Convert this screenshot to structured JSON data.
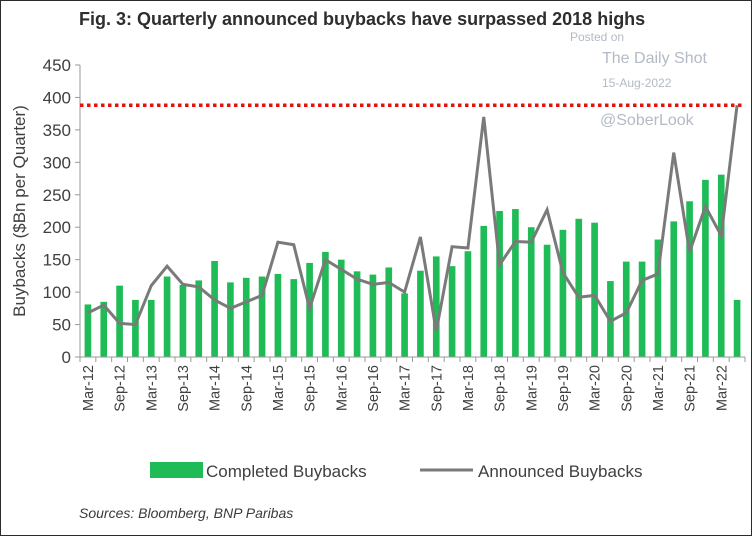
{
  "figure": {
    "title": "Fig. 3: Quarterly announced buybacks have surpassed 2018 highs",
    "source": "Sources: Bloomberg, BNP Paribas"
  },
  "watermark": {
    "posted": "Posted on",
    "site": "The Daily Shot",
    "date": "15-Aug-2022",
    "handle": "@SoberLook"
  },
  "colors": {
    "bar": "#1fbb56",
    "line": "#7a7a7a",
    "reference": "#e3140e",
    "axis": "#999999"
  },
  "chart_data": {
    "type": "bar",
    "title": "Fig. 3: Quarterly announced buybacks have surpassed 2018 highs",
    "ylabel": "Buybacks ($Bn per Quarter)",
    "xlabel": "",
    "ylim": [
      0,
      450
    ],
    "yticks": [
      0,
      50,
      100,
      150,
      200,
      250,
      300,
      350,
      400,
      450
    ],
    "grid": false,
    "legend_position": "bottom",
    "reference_line": {
      "value": 388,
      "style": "dotted"
    },
    "categories": [
      "Mar-12",
      "Jun-12",
      "Sep-12",
      "Dec-12",
      "Mar-13",
      "Jun-13",
      "Sep-13",
      "Dec-13",
      "Mar-14",
      "Jun-14",
      "Sep-14",
      "Dec-14",
      "Mar-15",
      "Jun-15",
      "Sep-15",
      "Dec-15",
      "Mar-16",
      "Jun-16",
      "Sep-16",
      "Dec-16",
      "Mar-17",
      "Jun-17",
      "Sep-17",
      "Dec-17",
      "Mar-18",
      "Jun-18",
      "Sep-18",
      "Dec-18",
      "Mar-19",
      "Jun-19",
      "Sep-19",
      "Dec-19",
      "Mar-20",
      "Jun-20",
      "Sep-20",
      "Dec-20",
      "Mar-21",
      "Jun-21",
      "Sep-21",
      "Dec-21",
      "Mar-22",
      "Jun-22"
    ],
    "tick_labels": [
      "Mar-12",
      "Sep-12",
      "Mar-13",
      "Sep-13",
      "Mar-14",
      "Sep-14",
      "Mar-15",
      "Sep-15",
      "Mar-16",
      "Sep-16",
      "Mar-17",
      "Sep-17",
      "Mar-18",
      "Sep-18",
      "Mar-19",
      "Sep-19",
      "Mar-20",
      "Sep-20",
      "Mar-21",
      "Sep-21",
      "Mar-22"
    ],
    "series": [
      {
        "name": "Completed Buybacks",
        "kind": "bar",
        "values": [
          81,
          85,
          110,
          88,
          88,
          124,
          111,
          118,
          148,
          115,
          122,
          124,
          128,
          120,
          145,
          162,
          150,
          132,
          127,
          138,
          98,
          133,
          155,
          140,
          163,
          202,
          225,
          228,
          200,
          173,
          196,
          213,
          207,
          117,
          147,
          147,
          181,
          209,
          240,
          273,
          281,
          88
        ]
      },
      {
        "name": "Announced Buybacks",
        "kind": "line",
        "values": [
          68,
          80,
          52,
          50,
          110,
          140,
          112,
          108,
          88,
          75,
          85,
          95,
          177,
          173,
          75,
          150,
          135,
          120,
          112,
          115,
          100,
          185,
          40,
          170,
          168,
          370,
          142,
          178,
          177,
          227,
          130,
          92,
          95,
          55,
          68,
          118,
          128,
          315,
          162,
          232,
          187,
          388
        ]
      }
    ]
  },
  "legend": {
    "completed_label": "Completed Buybacks",
    "announced_label": "Announced Buybacks"
  }
}
